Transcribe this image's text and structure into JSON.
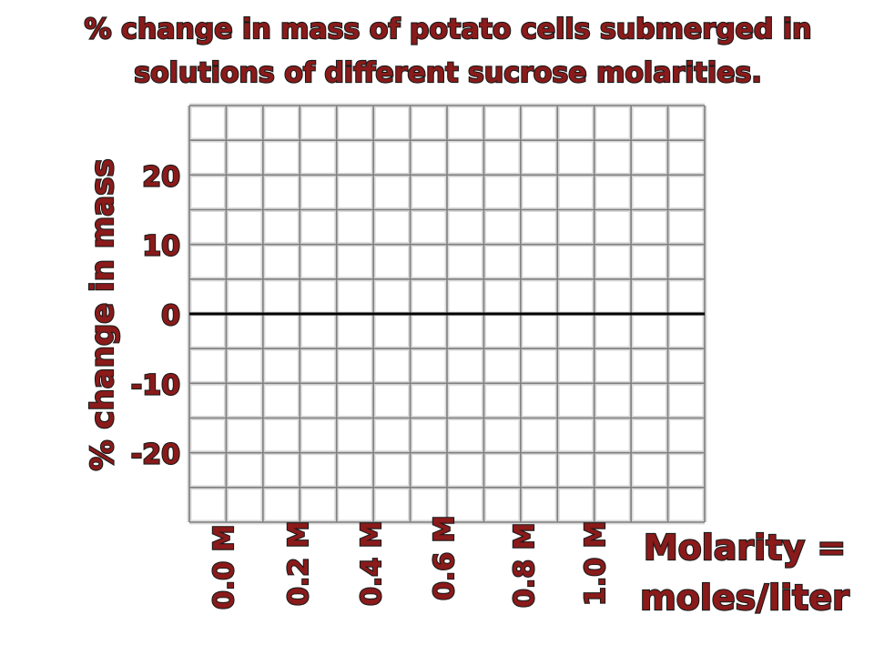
{
  "chart_data": {
    "type": "line",
    "title": "% change in mass of potato cells submerged in solutions of different sucrose molarities.",
    "title_lines": [
      "% change in mass of potato cells submerged in",
      "solutions of different sucrose molarities."
    ],
    "ylabel": "% change in mass",
    "xlabel": "Molarity = moles/liter",
    "xlabel_lines": [
      "Molarity =",
      "moles/liter"
    ],
    "x_ticks": [
      "0.0 M",
      "0.2 M",
      "0.4 M",
      "0.6 M",
      "0.8 M",
      "1.0 M"
    ],
    "y_ticks": [
      "20",
      "10",
      "0",
      "-10",
      "-20"
    ],
    "ylim": [
      -30,
      30
    ],
    "series": [],
    "grid": true,
    "zero_line": true,
    "colors": {
      "label_fill": "#8b1a1a",
      "label_outline": "#1a1a1a",
      "grid_light": "#d9d9d9",
      "grid_dark": "#7f7f7f"
    }
  }
}
